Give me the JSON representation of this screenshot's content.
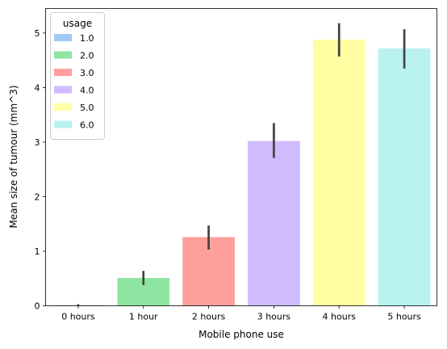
{
  "chart_data": {
    "type": "bar",
    "xlabel": "Mobile phone use",
    "ylabel": "Mean size of tumour (mm^3)",
    "categories": [
      "0 hours",
      "1 hour",
      "2 hours",
      "3 hours",
      "4 hours",
      "5 hours"
    ],
    "values": [
      0.01,
      0.51,
      1.26,
      3.02,
      4.88,
      4.72
    ],
    "error_low": [
      0.0,
      0.38,
      1.03,
      2.71,
      4.57,
      4.35
    ],
    "error_high": [
      0.03,
      0.64,
      1.47,
      3.35,
      5.18,
      5.07
    ],
    "bar_colors": [
      "#a1c9f4",
      "#8de5a1",
      "#ff9f9b",
      "#d0bbff",
      "#fffea3",
      "#b9f2f0"
    ],
    "error_color": "#424242",
    "ylim": [
      0,
      5.45
    ],
    "yticks": [
      0,
      1,
      2,
      3,
      4,
      5
    ],
    "grid": false,
    "legend": {
      "title": "usage",
      "placement": "top-left",
      "entries": [
        "1.0",
        "2.0",
        "3.0",
        "4.0",
        "5.0",
        "6.0"
      ]
    }
  }
}
